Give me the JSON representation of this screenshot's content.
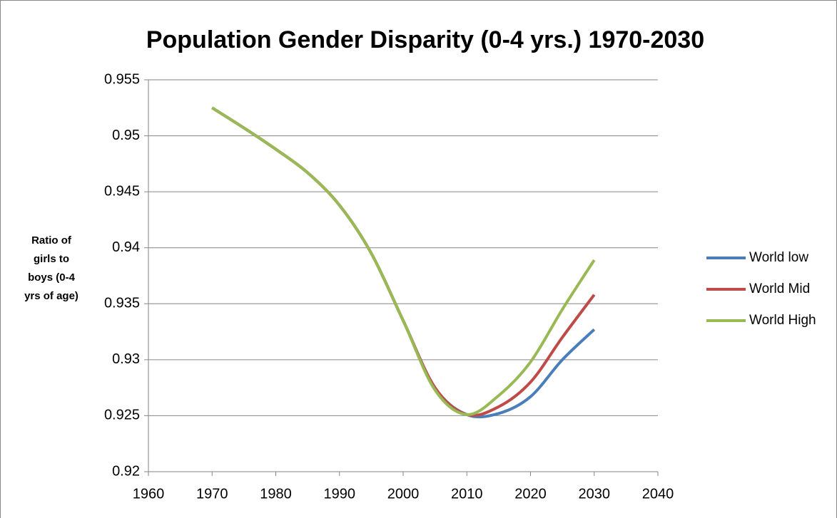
{
  "chart_data": {
    "type": "line",
    "title": "Population Gender Disparity (0-4 yrs.) 1970-2030",
    "y_label": "Ratio of girls to boys (0-4 yrs of age)",
    "x": [
      1970,
      1975,
      1980,
      1985,
      1990,
      1995,
      2000,
      2005,
      2010,
      2015,
      2020,
      2025,
      2030
    ],
    "series": [
      {
        "name": "World low",
        "color": "#4a7ebb",
        "values": [
          0.9525,
          0.9507,
          0.9488,
          0.9467,
          0.9438,
          0.9395,
          0.9335,
          0.9275,
          0.9251,
          0.9252,
          0.9267,
          0.93,
          0.9327
        ]
      },
      {
        "name": "World Mid",
        "color": "#be4b48",
        "values": [
          0.9525,
          0.9507,
          0.9488,
          0.9467,
          0.9438,
          0.9395,
          0.9335,
          0.9275,
          0.9251,
          0.9258,
          0.928,
          0.932,
          0.9358
        ]
      },
      {
        "name": "World High",
        "color": "#98b954",
        "values": [
          0.9525,
          0.9507,
          0.9488,
          0.9467,
          0.9438,
          0.9395,
          0.9335,
          0.9273,
          0.9251,
          0.9268,
          0.9298,
          0.9345,
          0.9389
        ]
      }
    ],
    "xlim": [
      1960,
      2040
    ],
    "xticks": [
      1960,
      1970,
      1980,
      1990,
      2000,
      2010,
      2020,
      2030,
      2040
    ],
    "ylim": [
      0.92,
      0.955
    ],
    "yticks": [
      0.92,
      0.925,
      0.93,
      0.935,
      0.94,
      0.945,
      0.95,
      0.955
    ],
    "grid": true,
    "legend": "right"
  }
}
